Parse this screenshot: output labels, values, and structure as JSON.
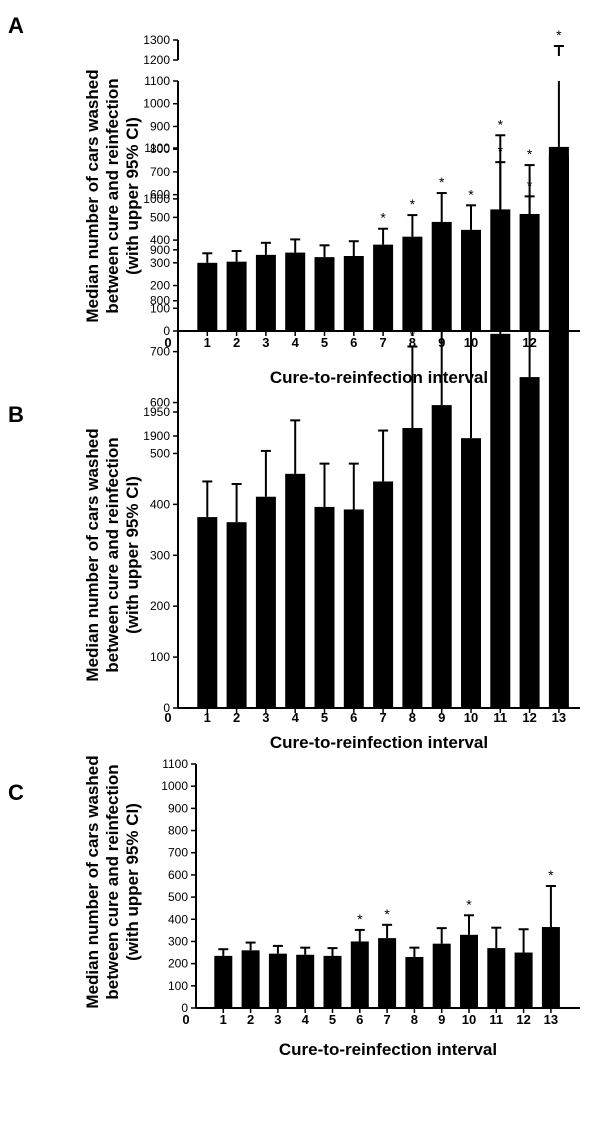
{
  "chart_data": [
    {
      "panel": "A",
      "type": "bar",
      "xlabel": "Cure-to-reinfection interval",
      "ylabel_lines": [
        "Median number of cars washed",
        "between cure and reinfection",
        "(with upper 95%  CI)"
      ],
      "x_origin_label": "0",
      "categories": [
        "1",
        "2",
        "3",
        "4",
        "5",
        "6",
        "7",
        "8",
        "9",
        "10",
        "11",
        "12",
        "13"
      ],
      "values": [
        300,
        305,
        335,
        345,
        325,
        330,
        380,
        415,
        480,
        445,
        535,
        515,
        810
      ],
      "upper_ci": [
        342,
        352,
        388,
        403,
        377,
        395,
        450,
        510,
        607,
        553,
        743,
        730,
        1270
      ],
      "significant": [
        false,
        false,
        false,
        false,
        false,
        false,
        true,
        true,
        true,
        true,
        true,
        true,
        true
      ],
      "y_segments": [
        {
          "min": 0,
          "max": 1100,
          "ticks": [
            0,
            100,
            200,
            300,
            400,
            500,
            600,
            700,
            800,
            900,
            1000,
            1100
          ]
        },
        {
          "min": 1200,
          "max": 1300,
          "ticks": [
            1200,
            1300
          ]
        }
      ]
    },
    {
      "panel": "B",
      "type": "bar",
      "xlabel": "Cure-to-reinfection interval",
      "ylabel_lines": [
        "Median number of cars washed",
        "between cure and reinfection",
        "(with upper 95%  CI)"
      ],
      "x_origin_label": "0",
      "categories": [
        "1",
        "2",
        "3",
        "4",
        "5",
        "6",
        "7",
        "8",
        "9",
        "10",
        "11",
        "12",
        "13"
      ],
      "values": [
        375,
        365,
        415,
        460,
        395,
        390,
        445,
        550,
        595,
        530,
        735,
        650,
        1085
      ],
      "upper_ci": [
        445,
        440,
        505,
        565,
        480,
        480,
        545,
        710,
        790,
        755,
        1125,
        1005,
        1920
      ],
      "significant": [
        false,
        false,
        false,
        false,
        false,
        false,
        false,
        true,
        true,
        false,
        true,
        true,
        true
      ],
      "y_segments": [
        {
          "min": 0,
          "max": 1100,
          "ticks": [
            0,
            100,
            200,
            300,
            400,
            500,
            600,
            700,
            800,
            900,
            1000,
            1100
          ]
        },
        {
          "min": 1900,
          "max": 1950,
          "ticks": [
            1900,
            1950
          ]
        }
      ]
    },
    {
      "panel": "C",
      "type": "bar",
      "xlabel": "Cure-to-reinfection interval",
      "ylabel_lines": [
        "Median number of cars washed",
        "between cure and reinfection",
        "(with upper 95%  CI)"
      ],
      "x_origin_label": "0",
      "categories": [
        "1",
        "2",
        "3",
        "4",
        "5",
        "6",
        "7",
        "8",
        "9",
        "10",
        "11",
        "12",
        "13"
      ],
      "values": [
        235,
        260,
        245,
        240,
        235,
        300,
        315,
        230,
        290,
        330,
        270,
        250,
        365
      ],
      "upper_ci": [
        265,
        295,
        280,
        272,
        270,
        352,
        375,
        272,
        360,
        418,
        362,
        355,
        550
      ],
      "significant": [
        false,
        false,
        false,
        false,
        false,
        true,
        true,
        false,
        false,
        true,
        false,
        false,
        true
      ],
      "y_segments": [
        {
          "min": 0,
          "max": 1100,
          "ticks": [
            0,
            100,
            200,
            300,
            400,
            500,
            600,
            700,
            800,
            900,
            1000,
            1100
          ]
        }
      ]
    }
  ],
  "star_symbol": "*"
}
